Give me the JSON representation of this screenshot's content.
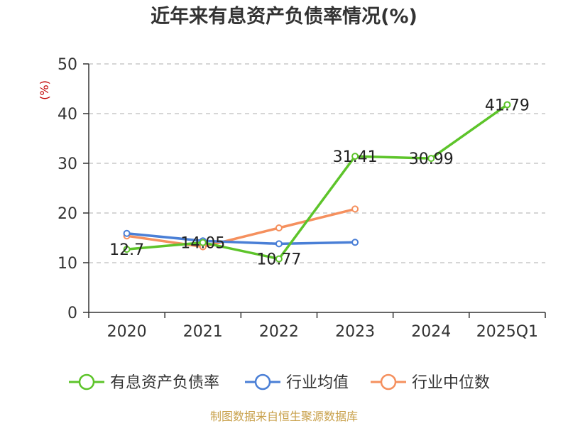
{
  "chart_data": {
    "type": "line",
    "title": "近年来有息资产负债率情况(%)",
    "ylabel": "(%)",
    "xlabel": "",
    "categories": [
      "2020",
      "2021",
      "2022",
      "2023",
      "2024",
      "2025Q1"
    ],
    "ylim": [
      0,
      50
    ],
    "yticks": [
      0,
      10,
      20,
      30,
      40,
      50
    ],
    "grid": true,
    "legend_position": "bottom",
    "series": [
      {
        "name": "有息资产负债率",
        "color": "#5dc42a",
        "values": [
          12.7,
          14.05,
          10.77,
          31.41,
          30.99,
          41.79
        ],
        "labels": [
          "12.7",
          "14.05",
          "10.77",
          "31.41",
          "30.99",
          "41.79"
        ]
      },
      {
        "name": "行业均值",
        "color": "#4a7fd6",
        "values": [
          15.9,
          14.4,
          13.8,
          14.1,
          null,
          null
        ]
      },
      {
        "name": "行业中位数",
        "color": "#f5905e",
        "values": [
          15.4,
          13.2,
          17.0,
          20.8,
          null,
          null
        ]
      }
    ],
    "source": "制图数据来自恒生聚源数据库"
  }
}
